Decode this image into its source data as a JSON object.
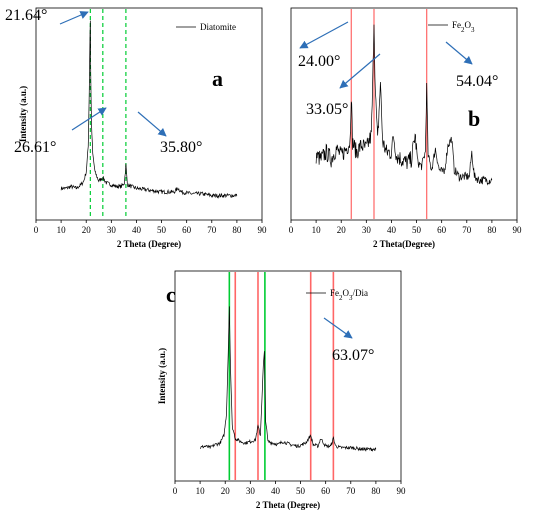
{
  "chart_data": [
    {
      "type": "line",
      "panel_label": "a",
      "legend": [
        "Diatomite"
      ],
      "xlabel": "2 Theta (Degree)",
      "ylabel": "Intensity (a.u.)",
      "xlim": [
        0,
        90
      ],
      "xticks": [
        0,
        10,
        20,
        30,
        40,
        50,
        60,
        70,
        80,
        90
      ],
      "grid": false,
      "legend_position": "top-right",
      "series": [
        {
          "name": "Diatomite",
          "color": "#000000",
          "x": [
            10,
            12,
            14,
            16,
            18,
            19,
            20,
            20.8,
            21.2,
            21.5,
            21.64,
            21.8,
            22.1,
            22.6,
            23.5,
            25,
            26.61,
            28,
            30,
            32,
            34,
            35.2,
            35.8,
            36.4,
            38,
            40,
            45,
            50,
            55,
            56.5,
            58,
            62,
            66,
            70,
            75,
            80
          ],
          "y": [
            7,
            7,
            8,
            7,
            9,
            11,
            16,
            30,
            60,
            92,
            100,
            70,
            42,
            26,
            16,
            11,
            13,
            10,
            9,
            8,
            8,
            10,
            20,
            9,
            8,
            7,
            6,
            5,
            5,
            7,
            5,
            4,
            4,
            3,
            3,
            3
          ]
        }
      ],
      "peaks": [
        {
          "x": 21.64,
          "label": "21.64°",
          "color": "#00cc33"
        },
        {
          "x": 26.61,
          "label": "26.61°",
          "color": "#00cc33"
        },
        {
          "x": 35.8,
          "label": "35.80°",
          "color": "#00cc33"
        }
      ]
    },
    {
      "type": "line",
      "panel_label": "b",
      "legend": [
        "Fe2O3"
      ],
      "xlabel": "2 Theta(Degree)",
      "ylabel": "",
      "xlim": [
        0,
        90
      ],
      "xticks": [
        0,
        10,
        20,
        30,
        40,
        50,
        60,
        70,
        80,
        90
      ],
      "grid": false,
      "legend_position": "top-right",
      "series": [
        {
          "name": "Fe2O3",
          "color": "#000000",
          "x": [
            10,
            12,
            14,
            16,
            18,
            20,
            22,
            23.5,
            24.0,
            24.5,
            26,
            28,
            30,
            32,
            32.5,
            33.05,
            33.6,
            34.5,
            35.6,
            36.5,
            38,
            40,
            40.8,
            42,
            44,
            46,
            48,
            49.4,
            50.5,
            52,
            53.5,
            54.04,
            54.6,
            56,
            57.5,
            59,
            61,
            62.5,
            64,
            65,
            67,
            69,
            71,
            72,
            73,
            75,
            78,
            80
          ],
          "y": [
            22,
            20,
            24,
            20,
            26,
            22,
            26,
            30,
            58,
            30,
            24,
            28,
            26,
            34,
            60,
            100,
            58,
            30,
            64,
            30,
            24,
            24,
            34,
            22,
            20,
            18,
            20,
            34,
            18,
            16,
            24,
            62,
            22,
            14,
            26,
            14,
            12,
            28,
            32,
            14,
            10,
            10,
            10,
            24,
            10,
            8,
            8,
            8
          ]
        }
      ],
      "peaks": [
        {
          "x": 24.0,
          "label": "24.00°",
          "color": "#ff6666"
        },
        {
          "x": 33.05,
          "label": "33.05°",
          "color": "#ff6666"
        },
        {
          "x": 54.04,
          "label": "54.04°",
          "color": "#ff6666"
        }
      ]
    },
    {
      "type": "line",
      "panel_label": "c",
      "legend": [
        "Fe2O3/Dia"
      ],
      "xlabel": "2 Theta (Degree)",
      "ylabel": "Intensity (a.u.)",
      "xlim": [
        0,
        90
      ],
      "xticks": [
        0,
        10,
        20,
        30,
        40,
        50,
        60,
        70,
        80,
        90
      ],
      "grid": false,
      "legend_position": "top-right",
      "series": [
        {
          "name": "Fe2O3/Dia",
          "color": "#000000",
          "x": [
            10,
            12,
            14,
            16,
            18,
            19.5,
            20.5,
            21.2,
            21.64,
            22.1,
            22.8,
            24,
            26,
            28,
            30,
            32,
            33.05,
            34,
            35.2,
            35.6,
            36.1,
            37,
            39,
            41,
            43,
            46,
            49,
            52,
            54.04,
            55,
            57,
            58,
            60,
            62,
            63.07,
            64,
            66,
            70,
            75,
            80
          ],
          "y": [
            8,
            9,
            8,
            10,
            11,
            16,
            30,
            70,
            100,
            60,
            22,
            14,
            12,
            11,
            12,
            13,
            22,
            16,
            62,
            70,
            26,
            12,
            11,
            10,
            12,
            10,
            9,
            11,
            16,
            10,
            9,
            14,
            9,
            9,
            14,
            9,
            8,
            8,
            7,
            7
          ]
        }
      ],
      "peaks": [
        {
          "x": 21.64,
          "color": "#00cc33"
        },
        {
          "x": 24.0,
          "color": "#ff6666"
        },
        {
          "x": 33.05,
          "color": "#ff6666"
        },
        {
          "x": 35.8,
          "color": "#00cc33"
        },
        {
          "x": 54.04,
          "color": "#ff6666"
        },
        {
          "x": 63.07,
          "label": "63.07°",
          "color": "#ff6666"
        }
      ]
    }
  ]
}
